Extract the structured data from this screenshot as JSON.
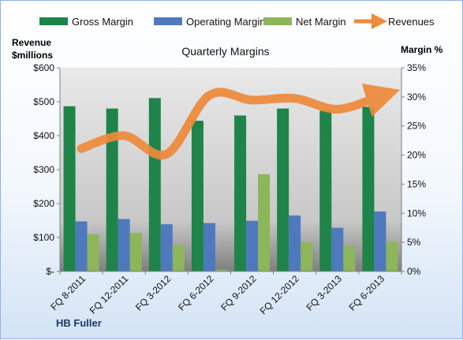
{
  "chart_data": {
    "type": "bar",
    "title": "Quarterly Margins",
    "brand": "HB Fuller",
    "categories": [
      "FQ 8-2011",
      "FQ 12-2011",
      "FQ 3-2012",
      "FQ 6-2012",
      "FQ 9-2012",
      "FQ 12-2012",
      "FQ 3-2013",
      "FQ 6-2013"
    ],
    "y_left": {
      "label_line1": "Revenue",
      "label_line2": "$millions",
      "ylim": [
        0,
        600
      ],
      "ticks": [
        0,
        100,
        200,
        300,
        400,
        500,
        600
      ],
      "tick_labels": [
        "$-",
        "$100",
        "$200",
        "$300",
        "$400",
        "$500",
        "$600"
      ]
    },
    "y_right": {
      "label": "Margin %",
      "ylim": [
        0,
        35
      ],
      "ticks": [
        0,
        5,
        10,
        15,
        20,
        25,
        30,
        35
      ],
      "tick_labels": [
        "0%",
        "5%",
        "10%",
        "15%",
        "20%",
        "25%",
        "30%",
        "35%"
      ]
    },
    "series": [
      {
        "name": "Gross Margin",
        "kind": "bar",
        "axis": "right",
        "color": "#1e8449",
        "values": [
          28.4,
          28.0,
          29.8,
          25.9,
          26.8,
          28.0,
          27.6,
          28.3
        ]
      },
      {
        "name": "Operating Margin",
        "kind": "bar",
        "axis": "right",
        "color": "#4f79bd",
        "values": [
          8.6,
          9.0,
          8.1,
          8.3,
          8.7,
          9.6,
          7.5,
          10.3
        ]
      },
      {
        "name": "Net Margin",
        "kind": "bar",
        "axis": "right",
        "color": "#8db55a",
        "values": [
          6.4,
          6.6,
          4.5,
          0.3,
          16.7,
          5.0,
          4.4,
          5.1
        ]
      },
      {
        "name": "Revenues",
        "kind": "line",
        "axis": "left",
        "color": "#ee8a3a",
        "values": [
          362,
          400,
          346,
          519,
          505,
          510,
          478,
          517
        ]
      }
    ],
    "grid": false,
    "legend": "top"
  }
}
